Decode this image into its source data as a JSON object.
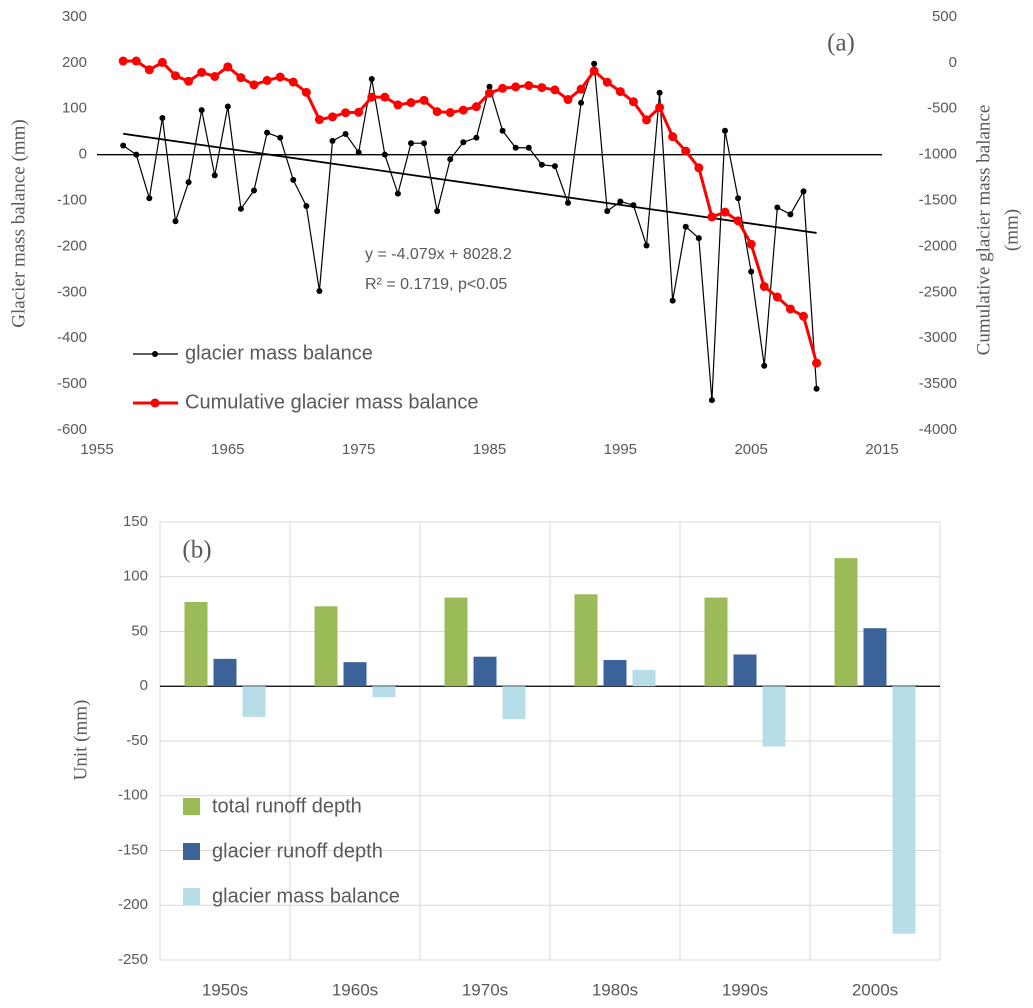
{
  "chart_data": [
    {
      "type": "line",
      "label": "(a)",
      "ylabel": "Glacier mass balance (mm)",
      "y2label": [
        "Cumulative glacier mass balance",
        "(mm)"
      ],
      "x": [
        1957,
        1958,
        1959,
        1960,
        1961,
        1962,
        1963,
        1964,
        1965,
        1966,
        1967,
        1968,
        1969,
        1970,
        1971,
        1972,
        1973,
        1974,
        1975,
        1976,
        1977,
        1978,
        1979,
        1980,
        1981,
        1982,
        1983,
        1984,
        1985,
        1986,
        1987,
        1988,
        1989,
        1990,
        1991,
        1992,
        1993,
        1994,
        1995,
        1996,
        1997,
        1998,
        1999,
        2000,
        2001,
        2002,
        2003,
        2004,
        2005,
        2006,
        2007,
        2008,
        2009,
        2010
      ],
      "series": [
        {
          "name": "glacier mass balance",
          "color": "#000000",
          "values": [
            20,
            0,
            -95,
            80,
            -145,
            -60,
            97,
            -45,
            105,
            -118,
            -78,
            48,
            37,
            -55,
            -112,
            -297,
            30,
            45,
            5,
            165,
            0,
            -85,
            25,
            25,
            -123,
            -10,
            27,
            37,
            148,
            52,
            15,
            15,
            -22,
            -25,
            -105,
            113,
            198,
            -123,
            -102,
            -110,
            -198,
            135,
            -318,
            -157,
            -182,
            -535,
            52,
            -95,
            -255,
            -460,
            -115,
            -130,
            -80,
            -510
          ]
        },
        {
          "name": "Cumulative glacier mass balance",
          "color": "#ff0000",
          "axis": "y2",
          "values": [
            20,
            20,
            -75,
            5,
            -140,
            -200,
            -103,
            -148,
            -43,
            -161,
            -239,
            -191,
            -154,
            -209,
            -321,
            -618,
            -588,
            -543,
            -538,
            -373,
            -373,
            -458,
            -433,
            -408,
            -531,
            -541,
            -514,
            -477,
            -329,
            -277,
            -262,
            -247,
            -269,
            -294,
            -399,
            -286,
            -88,
            -211,
            -313,
            -423,
            -621,
            -486,
            -804,
            -961,
            -1143,
            -1678,
            -1626,
            -1721,
            -1976,
            -2436,
            -2551,
            -2681,
            -2761,
            -3271
          ]
        }
      ],
      "trendline": {
        "x": [
          1957,
          2010
        ],
        "values": [
          45.6,
          -170.6
        ],
        "color": "#000000"
      },
      "annotations": [
        "y = -4.079x + 8028.2",
        "R² = 0.1719, p<0.05"
      ],
      "xlim": [
        1955,
        2015
      ],
      "xticks": [
        1955,
        1965,
        1975,
        1985,
        1995,
        2005,
        2015
      ],
      "ylim": [
        -600,
        300
      ],
      "yticks": [
        -600,
        -500,
        -400,
        -300,
        -200,
        -100,
        0,
        100,
        200,
        300
      ],
      "y2lim": [
        -4000,
        500
      ],
      "y2ticks": [
        -4000,
        -3500,
        -3000,
        -2500,
        -2000,
        -1500,
        -1000,
        -500,
        0,
        500
      ],
      "legend": "lower left"
    },
    {
      "type": "bar",
      "label": "(b)",
      "ylabel": "Unit (mm)",
      "categories": [
        "1950s",
        "1960s",
        "1970s",
        "1980s",
        "1990s",
        "2000s"
      ],
      "series": [
        {
          "name": "total runoff depth",
          "color": "#9bbb59",
          "values": [
            77,
            73,
            81,
            84,
            81,
            117
          ]
        },
        {
          "name": "glacier runoff depth",
          "color": "#3c6399",
          "values": [
            25,
            22,
            27,
            24,
            29,
            53
          ]
        },
        {
          "name": "glacier mass balance",
          "color": "#b7dde8",
          "values": [
            -28,
            -10,
            -30,
            15,
            -55,
            -226
          ]
        }
      ],
      "ylim": [
        -250,
        150
      ],
      "yticks": [
        -250,
        -200,
        -150,
        -100,
        -50,
        0,
        50,
        100,
        150
      ],
      "grid": true,
      "legend": "center left"
    }
  ]
}
